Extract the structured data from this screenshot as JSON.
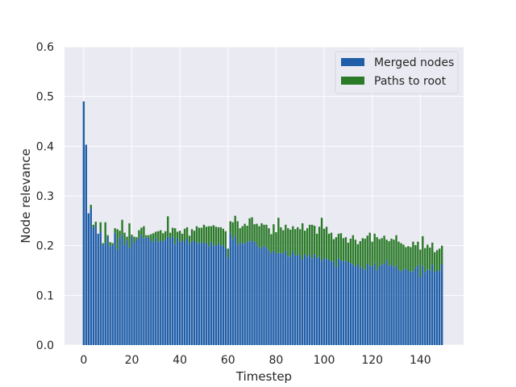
{
  "chart_data": {
    "type": "bar",
    "stacked": true,
    "xlabel": "Timestep",
    "ylabel": "Node relevance",
    "xlim": [
      -8,
      158
    ],
    "ylim": [
      0,
      0.6
    ],
    "xticks": [
      "0",
      "20",
      "40",
      "60",
      "80",
      "100",
      "120",
      "140"
    ],
    "yticks": [
      "0.0",
      "0.1",
      "0.2",
      "0.3",
      "0.4",
      "0.5",
      "0.6"
    ],
    "grid": true,
    "legend_position": "top-right",
    "colors": {
      "background": "#eaeaf2",
      "grid": "#ffffff",
      "merged": "#1f5ea8",
      "paths": "#2a7a28",
      "text": "#262626"
    },
    "x": [
      0,
      1,
      2,
      3,
      4,
      5,
      6,
      7,
      8,
      9,
      10,
      11,
      12,
      13,
      14,
      15,
      16,
      17,
      18,
      19,
      20,
      21,
      22,
      23,
      24,
      25,
      26,
      27,
      28,
      29,
      30,
      31,
      32,
      33,
      34,
      35,
      36,
      37,
      38,
      39,
      40,
      41,
      42,
      43,
      44,
      45,
      46,
      47,
      48,
      49,
      50,
      51,
      52,
      53,
      54,
      55,
      56,
      57,
      58,
      59,
      60,
      61,
      62,
      63,
      64,
      65,
      66,
      67,
      68,
      69,
      70,
      71,
      72,
      73,
      74,
      75,
      76,
      77,
      78,
      79,
      80,
      81,
      82,
      83,
      84,
      85,
      86,
      87,
      88,
      89,
      90,
      91,
      92,
      93,
      94,
      95,
      96,
      97,
      98,
      99,
      100,
      101,
      102,
      103,
      104,
      105,
      106,
      107,
      108,
      109,
      110,
      111,
      112,
      113,
      114,
      115,
      116,
      117,
      118,
      119,
      120,
      121,
      122,
      123,
      124,
      125,
      126,
      127,
      128,
      129,
      130,
      131,
      132,
      133,
      134,
      135,
      136,
      137,
      138,
      139,
      140,
      141,
      142,
      143,
      144,
      145,
      146,
      147,
      148,
      149
    ],
    "series": [
      {
        "name": "Merged nodes",
        "values": [
          0.49,
          0.403,
          0.265,
          0.275,
          0.236,
          0.24,
          0.224,
          0.228,
          0.201,
          0.205,
          0.218,
          0.199,
          0.201,
          0.226,
          0.192,
          0.215,
          0.222,
          0.202,
          0.211,
          0.196,
          0.218,
          0.206,
          0.213,
          0.215,
          0.222,
          0.215,
          0.216,
          0.216,
          0.21,
          0.207,
          0.215,
          0.208,
          0.21,
          0.209,
          0.212,
          0.218,
          0.215,
          0.218,
          0.203,
          0.215,
          0.208,
          0.21,
          0.209,
          0.214,
          0.204,
          0.208,
          0.21,
          0.207,
          0.204,
          0.207,
          0.206,
          0.205,
          0.198,
          0.207,
          0.2,
          0.201,
          0.205,
          0.2,
          0.201,
          0.195,
          0.176,
          0.225,
          0.213,
          0.219,
          0.202,
          0.207,
          0.204,
          0.204,
          0.209,
          0.208,
          0.21,
          0.208,
          0.202,
          0.196,
          0.196,
          0.2,
          0.196,
          0.19,
          0.185,
          0.19,
          0.185,
          0.185,
          0.185,
          0.184,
          0.189,
          0.178,
          0.179,
          0.188,
          0.181,
          0.18,
          0.181,
          0.172,
          0.183,
          0.178,
          0.181,
          0.174,
          0.183,
          0.175,
          0.178,
          0.17,
          0.175,
          0.173,
          0.172,
          0.168,
          0.169,
          0.157,
          0.174,
          0.17,
          0.169,
          0.17,
          0.167,
          0.165,
          0.162,
          0.158,
          0.163,
          0.157,
          0.154,
          0.151,
          0.163,
          0.16,
          0.158,
          0.165,
          0.15,
          0.159,
          0.162,
          0.163,
          0.171,
          0.16,
          0.162,
          0.157,
          0.16,
          0.151,
          0.149,
          0.151,
          0.154,
          0.15,
          0.148,
          0.148,
          0.155,
          0.161,
          0.137,
          0.16,
          0.147,
          0.152,
          0.151,
          0.162,
          0.147,
          0.15,
          0.149,
          0.163
        ]
      },
      {
        "name": "Paths to root",
        "values": [
          0.0,
          0.0,
          0.0,
          0.007,
          0.006,
          0.008,
          0.0,
          0.019,
          0.004,
          0.042,
          0.003,
          0.008,
          0.004,
          0.009,
          0.041,
          0.015,
          0.03,
          0.024,
          0.007,
          0.049,
          0.004,
          0.012,
          0.004,
          0.016,
          0.014,
          0.024,
          0.005,
          0.005,
          0.013,
          0.018,
          0.013,
          0.021,
          0.021,
          0.016,
          0.017,
          0.041,
          0.011,
          0.018,
          0.032,
          0.013,
          0.022,
          0.014,
          0.025,
          0.023,
          0.016,
          0.025,
          0.02,
          0.032,
          0.032,
          0.029,
          0.036,
          0.033,
          0.041,
          0.032,
          0.041,
          0.037,
          0.032,
          0.037,
          0.033,
          0.034,
          0.018,
          0.024,
          0.034,
          0.041,
          0.047,
          0.028,
          0.035,
          0.04,
          0.031,
          0.047,
          0.047,
          0.035,
          0.042,
          0.043,
          0.049,
          0.042,
          0.046,
          0.045,
          0.038,
          0.053,
          0.042,
          0.071,
          0.052,
          0.047,
          0.053,
          0.057,
          0.053,
          0.051,
          0.052,
          0.057,
          0.052,
          0.073,
          0.047,
          0.057,
          0.061,
          0.068,
          0.057,
          0.049,
          0.06,
          0.086,
          0.059,
          0.065,
          0.052,
          0.058,
          0.044,
          0.06,
          0.05,
          0.055,
          0.046,
          0.047,
          0.039,
          0.049,
          0.059,
          0.054,
          0.04,
          0.052,
          0.061,
          0.063,
          0.057,
          0.066,
          0.05,
          0.059,
          0.067,
          0.054,
          0.053,
          0.057,
          0.041,
          0.049,
          0.052,
          0.055,
          0.061,
          0.057,
          0.056,
          0.051,
          0.043,
          0.049,
          0.049,
          0.06,
          0.046,
          0.047,
          0.055,
          0.059,
          0.048,
          0.05,
          0.045,
          0.044,
          0.04,
          0.041,
          0.045,
          0.037
        ]
      }
    ]
  }
}
